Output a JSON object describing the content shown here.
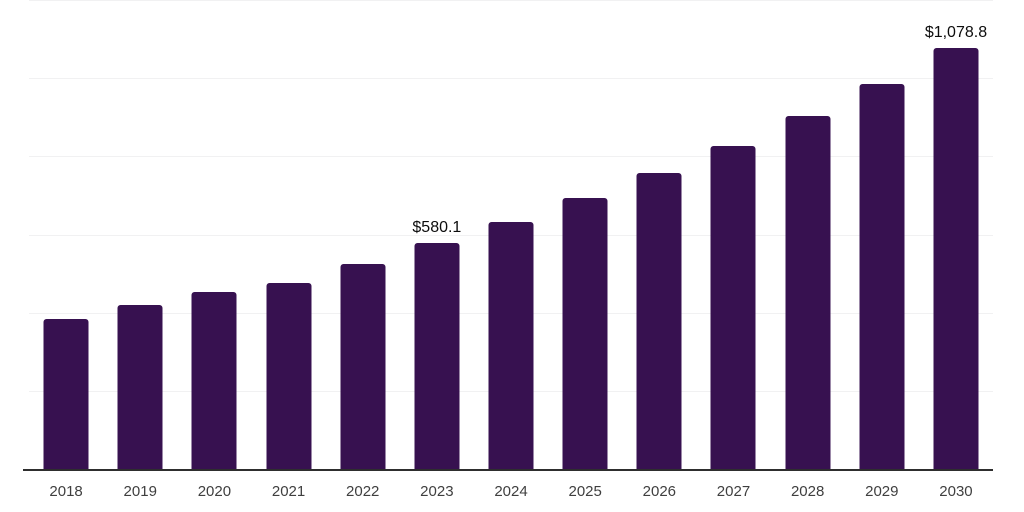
{
  "chart_data": {
    "type": "bar",
    "title": "",
    "xlabel": "",
    "ylabel": "",
    "categories": [
      "2018",
      "2019",
      "2020",
      "2021",
      "2022",
      "2023",
      "2024",
      "2025",
      "2026",
      "2027",
      "2028",
      "2029",
      "2030"
    ],
    "values": [
      385.6,
      421.2,
      454.4,
      477.4,
      525.9,
      580.1,
      635.7,
      697.0,
      760.8,
      829.7,
      906.3,
      988.0,
      1078.8
    ],
    "data_labels": {
      "2023": "$580.1",
      "2030": "$1,078.8"
    },
    "ylim": [
      0,
      1200
    ],
    "gridline_step": 200,
    "y_axis_labels_visible": false,
    "grid": "horizontal",
    "legend": "none"
  },
  "style": {
    "bar_color": "#371150",
    "axis_line_color": "#2e2e2e",
    "gridline_color": "#f1f1f2",
    "tick_label_color": "#3f3f3f",
    "value_label_color": "#0d0d0d",
    "background_color": "#ffffff"
  }
}
